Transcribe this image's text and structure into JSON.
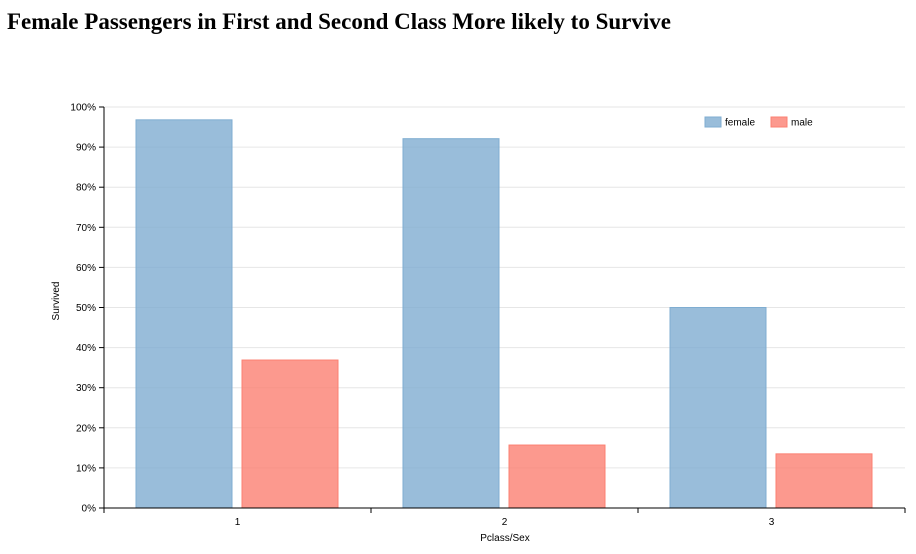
{
  "chart_data": {
    "type": "bar",
    "title": "Female Passengers in First and Second Class More likely to Survive",
    "xlabel": "Pclass/Sex",
    "ylabel": "Survived",
    "categories": [
      "1",
      "2",
      "3"
    ],
    "series": [
      {
        "name": "female",
        "values": [
          0.968,
          0.921,
          0.5
        ],
        "color": "#7fadd1"
      },
      {
        "name": "male",
        "values": [
          0.369,
          0.157,
          0.135
        ],
        "color": "#fb8072"
      }
    ],
    "ylim": [
      0,
      1
    ],
    "yticks": [
      {
        "value": 0.0,
        "label": "0%"
      },
      {
        "value": 0.1,
        "label": "10%"
      },
      {
        "value": 0.2,
        "label": "20%"
      },
      {
        "value": 0.3,
        "label": "30%"
      },
      {
        "value": 0.4,
        "label": "40%"
      },
      {
        "value": 0.5,
        "label": "50%"
      },
      {
        "value": 0.6,
        "label": "60%"
      },
      {
        "value": 0.7,
        "label": "70%"
      },
      {
        "value": 0.8,
        "label": "80%"
      },
      {
        "value": 0.9,
        "label": "90%"
      },
      {
        "value": 1.0,
        "label": "100%"
      }
    ],
    "grid": true,
    "legend_position": "top-right"
  }
}
